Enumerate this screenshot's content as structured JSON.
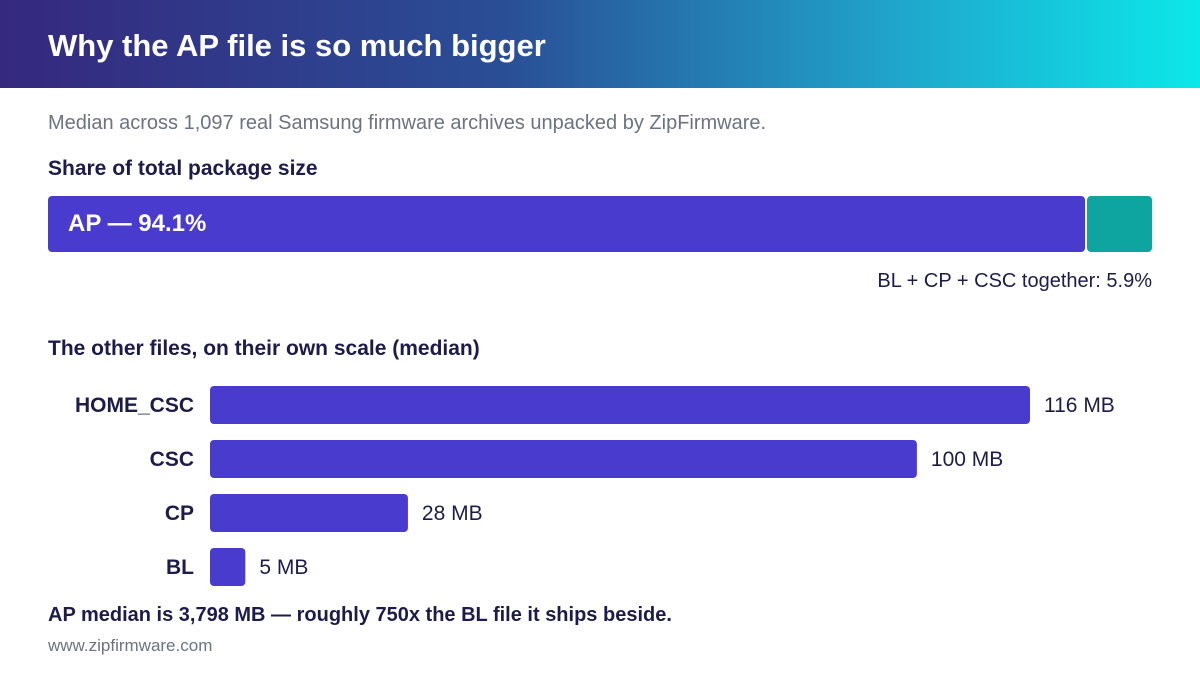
{
  "header": {
    "title": "Why the AP file is so much bigger"
  },
  "subtitle": "Median across 1,097 real Samsung firmware archives unpacked by ZipFirmware.",
  "colors": {
    "bar": "#4a3bcf",
    "others_segment": "#0ea5a0",
    "text": "#1e1b4b",
    "muted": "#6b7280"
  },
  "chart_data": [
    {
      "type": "bar",
      "orientation": "horizontal-stacked",
      "title": "Share of total package size",
      "categories": [
        "AP",
        "BL + CP + CSC"
      ],
      "values": [
        94.1,
        5.9
      ],
      "unit": "%",
      "segment_label": "AP — 94.1%",
      "note": "BL + CP + CSC together: 5.9%"
    },
    {
      "type": "bar",
      "orientation": "horizontal",
      "title": "The other files, on their own scale (median)",
      "categories": [
        "HOME_CSC",
        "CSC",
        "CP",
        "BL"
      ],
      "values": [
        116,
        100,
        28,
        5
      ],
      "value_labels": [
        "116 MB",
        "100 MB",
        "28 MB",
        "5 MB"
      ],
      "unit": "MB",
      "xlim": [
        0,
        116
      ]
    }
  ],
  "footnote": "AP median is 3,798 MB — roughly 750x the BL file it ships beside.",
  "site": "www.zipfirmware.com"
}
